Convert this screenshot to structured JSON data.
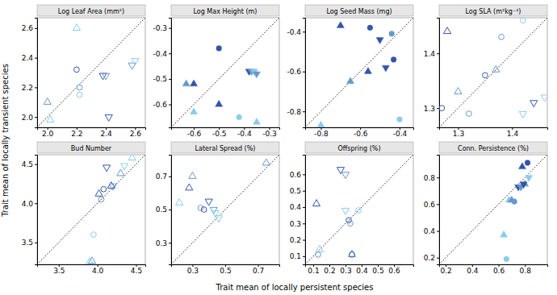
{
  "xlabel": "Trait mean of locally persistent species",
  "ylabel": "Trait mean of locally transient species",
  "chart_data": [
    {
      "type": "scatter",
      "title": "Log Leaf Area (mm²)",
      "xlim": [
        1.93,
        2.67
      ],
      "ylim": [
        1.93,
        2.67
      ],
      "xticks": [
        {
          "value": 2.0,
          "label": "2.0"
        },
        2.2,
        2.4,
        2.6
      ],
      "yticks": [
        {
          "value": 2.0,
          "label": "2.0"
        },
        2.2,
        2.4,
        2.6
      ],
      "series": [
        {
          "marker": "triangle-up-open",
          "x": [
            2.0,
            2.02,
            2.2
          ],
          "values": [
            2.1,
            1.98,
            2.6
          ],
          "colors": [
            "#6699cc",
            "#88ccee",
            "#88ccee"
          ]
        },
        {
          "marker": "circle-open",
          "x": [
            2.2,
            2.22,
            2.22
          ],
          "values": [
            2.32,
            2.2,
            2.15
          ],
          "colors": [
            "#3355aa",
            "#6699cc",
            "#88ccee"
          ]
        },
        {
          "marker": "triangle-down-open",
          "x": [
            2.38,
            2.4,
            2.42,
            2.58,
            2.6
          ],
          "values": [
            2.28,
            2.28,
            2.0,
            2.35,
            2.38
          ],
          "colors": [
            "#3355aa",
            "#6699cc",
            "#3355aa",
            "#6699cc",
            "#88ccee"
          ]
        }
      ]
    },
    {
      "type": "scatter",
      "title": "Log Max Height (m)",
      "xlim": [
        -0.69,
        -0.26
      ],
      "ylim": [
        -0.69,
        -0.26
      ],
      "xticks": [
        -0.6,
        -0.5,
        -0.4,
        -0.3
      ],
      "yticks": [
        -0.6,
        -0.5,
        -0.4,
        -0.3
      ],
      "series": [
        {
          "marker": "triangle-up",
          "x": [
            -0.63,
            -0.6,
            -0.6,
            -0.5,
            -0.35
          ],
          "values": [
            -0.52,
            -0.52,
            -0.63,
            -0.6,
            -0.67
          ],
          "colors": [
            "#6699cc",
            "#3355aa",
            "#88ccee",
            "#3355aa",
            "#88ccee"
          ]
        },
        {
          "marker": "circle",
          "x": [
            -0.5,
            -0.42
          ],
          "values": [
            -0.38,
            -0.65
          ],
          "colors": [
            "#3355aa",
            "#88ccee"
          ]
        },
        {
          "marker": "triangle-down",
          "x": [
            -0.38,
            -0.37,
            -0.36,
            -0.35
          ],
          "values": [
            -0.47,
            -0.47,
            -0.47,
            -0.48
          ],
          "colors": [
            "#3355aa",
            "#6699cc",
            "#88ccee",
            "#6699cc"
          ]
        }
      ]
    },
    {
      "type": "scatter",
      "title": "Log Seed Mass (mg)",
      "xlim": [
        -0.88,
        -0.33
      ],
      "ylim": [
        -0.88,
        -0.33
      ],
      "xticks": [
        -0.8,
        -0.6,
        -0.4
      ],
      "yticks": [
        -0.8,
        -0.6,
        -0.4
      ],
      "series": [
        {
          "marker": "triangle-up",
          "x": [
            -0.8,
            -0.7,
            -0.65,
            -0.56
          ],
          "values": [
            -0.87,
            -0.37,
            -0.65,
            -0.6
          ],
          "colors": [
            "#88ccee",
            "#3355aa",
            "#6699cc",
            "#3355aa"
          ]
        },
        {
          "marker": "circle",
          "x": [
            -0.55,
            -0.44,
            -0.43,
            -0.4
          ],
          "values": [
            -0.38,
            -0.41,
            -0.54,
            -0.84
          ],
          "colors": [
            "#3355aa",
            "#6699cc",
            "#3355aa",
            "#88ccee"
          ]
        },
        {
          "marker": "triangle-down",
          "x": [
            -0.5,
            -0.47
          ],
          "values": [
            -0.44,
            -0.58
          ],
          "colors": [
            "#3355aa",
            "#3355aa"
          ]
        }
      ]
    },
    {
      "type": "scatter",
      "title": "Log SLA (m²kg⁻¹)",
      "xlim": [
        1.265,
        1.465
      ],
      "ylim": [
        1.265,
        1.465
      ],
      "xticks": [
        1.3,
        1.4
      ],
      "yticks": [
        1.3,
        1.4
      ],
      "series": [
        {
          "marker": "circle-open",
          "x": [
            1.27,
            1.32,
            1.35,
            1.38,
            1.42
          ],
          "values": [
            1.3,
            1.29,
            1.36,
            1.43,
            1.46
          ],
          "colors": [
            "#3355aa",
            "#6699cc",
            "#3355aa",
            "#6699cc",
            "#88ccee"
          ]
        },
        {
          "marker": "triangle-up-open",
          "x": [
            1.28,
            1.3,
            1.37
          ],
          "values": [
            1.44,
            1.33,
            1.37
          ],
          "colors": [
            "#3355aa",
            "#6699cc",
            "#6699cc"
          ]
        },
        {
          "marker": "triangle-down-open",
          "x": [
            1.42,
            1.44,
            1.46
          ],
          "values": [
            1.29,
            1.31,
            1.32
          ],
          "colors": [
            "#88ccee",
            "#3355aa",
            "#88ccee"
          ]
        }
      ]
    },
    {
      "type": "scatter",
      "title": "Bud Number",
      "xlim": [
        3.22,
        4.62
      ],
      "ylim": [
        3.22,
        4.62
      ],
      "xticks": [
        3.5,
        {
          "value": 4.0,
          "label": "4.0"
        },
        4.5
      ],
      "yticks": [
        3.5,
        {
          "value": 4.0,
          "label": "4.0"
        },
        4.5
      ],
      "series": [
        {
          "marker": "triangle-up-open",
          "x": [
            3.9,
            3.93,
            4.02,
            4.18,
            4.3,
            4.45
          ],
          "values": [
            3.25,
            3.26,
            4.12,
            4.22,
            4.38,
            4.58
          ],
          "colors": [
            "#88ccee",
            "#6699cc",
            "#3355aa",
            "#3355aa",
            "#6699cc",
            "#88ccee"
          ]
        },
        {
          "marker": "circle-open",
          "x": [
            3.95,
            4.05,
            4.08
          ],
          "values": [
            3.6,
            4.05,
            4.18
          ],
          "colors": [
            "#88ccee",
            "#6699cc",
            "#3355aa"
          ]
        },
        {
          "marker": "triangle-down-open",
          "x": [
            4.12,
            4.2,
            4.35
          ],
          "values": [
            4.46,
            4.22,
            4.48
          ],
          "colors": [
            "#3355aa",
            "#6699cc",
            "#88ccee"
          ]
        }
      ]
    },
    {
      "type": "scatter",
      "title": "Lateral Spread (%)",
      "xlim": [
        0.17,
        0.83
      ],
      "ylim": [
        0.17,
        0.83
      ],
      "xticks": [
        0.3,
        0.5,
        0.7
      ],
      "yticks": [
        0.3,
        0.5,
        0.7
      ],
      "series": [
        {
          "marker": "triangle-up-open",
          "x": [
            0.22,
            0.28,
            0.3,
            0.75
          ],
          "values": [
            0.54,
            0.63,
            0.7,
            0.78
          ],
          "colors": [
            "#88ccee",
            "#3355aa",
            "#6699cc",
            "#6699cc"
          ]
        },
        {
          "marker": "circle-open",
          "x": [
            0.35,
            0.37
          ],
          "values": [
            0.51,
            0.5
          ],
          "colors": [
            "#6699cc",
            "#3355aa"
          ]
        },
        {
          "marker": "triangle-down-open",
          "x": [
            0.4,
            0.43,
            0.44,
            0.46
          ],
          "values": [
            0.55,
            0.5,
            0.48,
            0.45
          ],
          "colors": [
            "#3355aa",
            "#6699cc",
            "#88ccee",
            "#88ccee"
          ]
        }
      ]
    },
    {
      "type": "scatter",
      "title": "Offspring (%)",
      "xlim": [
        0.05,
        0.72
      ],
      "ylim": [
        0.05,
        0.72
      ],
      "xticks": [
        0.1,
        0.2,
        0.3,
        0.4,
        0.5,
        0.6
      ],
      "yticks": [
        0.1,
        0.2,
        0.3,
        0.4,
        0.5,
        0.6
      ],
      "series": [
        {
          "marker": "triangle-up-open",
          "x": [
            0.12,
            0.14,
            0.34
          ],
          "values": [
            0.42,
            0.14,
            0.11
          ],
          "colors": [
            "#3355aa",
            "#88ccee",
            "#6699cc"
          ]
        },
        {
          "marker": "circle-open",
          "x": [
            0.13,
            0.32,
            0.33,
            0.34,
            0.38
          ],
          "values": [
            0.11,
            0.32,
            0.3,
            0.11,
            0.38
          ],
          "colors": [
            "#6699cc",
            "#3355aa",
            "#6699cc",
            "#3355aa",
            "#88ccee"
          ]
        },
        {
          "marker": "triangle-down-open",
          "x": [
            0.27,
            0.3,
            0.3
          ],
          "values": [
            0.63,
            0.6,
            0.38
          ],
          "colors": [
            "#3355aa",
            "#6699cc",
            "#88ccee"
          ]
        }
      ]
    },
    {
      "type": "scatter",
      "title": "Conn. Persistence (%)",
      "xlim": [
        0.15,
        0.97
      ],
      "ylim": [
        0.15,
        0.97
      ],
      "xticks": [
        0.2,
        0.4,
        0.6,
        0.8
      ],
      "yticks": [
        0.2,
        0.4,
        0.6,
        0.8
      ],
      "series": [
        {
          "marker": "triangle-up",
          "x": [
            0.64,
            0.68,
            0.7,
            0.78,
            0.8
          ],
          "values": [
            0.37,
            0.63,
            0.63,
            0.88,
            0.75
          ],
          "colors": [
            "#88ccee",
            "#88ccee",
            "#6699cc",
            "#3355aa",
            "#6699cc"
          ]
        },
        {
          "marker": "circle",
          "x": [
            0.66,
            0.72,
            0.82
          ],
          "values": [
            0.19,
            0.62,
            0.91
          ],
          "colors": [
            "#88ccee",
            "#6699cc",
            "#3355aa"
          ]
        },
        {
          "marker": "triangle-down",
          "x": [
            0.75,
            0.77,
            0.79,
            0.83
          ],
          "values": [
            0.73,
            0.73,
            0.75,
            0.8
          ],
          "colors": [
            "#3355aa",
            "#6699cc",
            "#3355aa",
            "#88ccee"
          ]
        }
      ]
    }
  ]
}
